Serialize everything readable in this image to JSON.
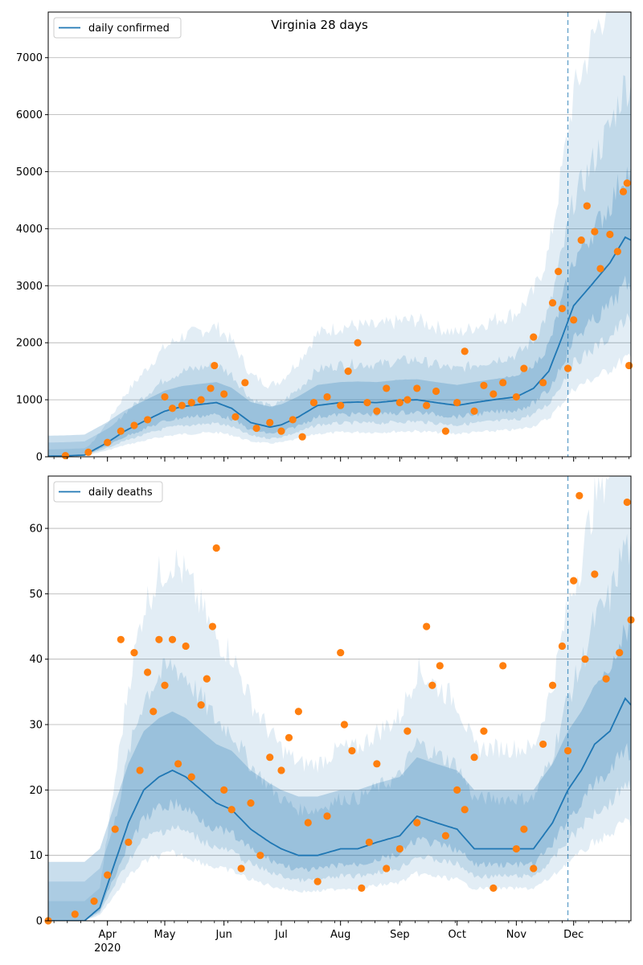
{
  "colors": {
    "line": "#1f77b4",
    "points": "#ff7f0e",
    "band": "#1f77b4",
    "grid": "#b0b0b0",
    "axis": "#000000"
  },
  "chart_data": [
    {
      "type": "line",
      "title": "Virginia 28 days",
      "legend": {
        "placement": "top-left",
        "entries": [
          "daily confirmed"
        ]
      },
      "grid": "y",
      "xlim": [
        "2020-03-01",
        "2020-12-31"
      ],
      "ylim": [
        0,
        7800
      ],
      "yticks": [
        0,
        1000,
        2000,
        3000,
        4000,
        5000,
        6000,
        7000
      ],
      "forecast_start": "2020-11-28",
      "series": [
        {
          "name": "daily confirmed",
          "kind": "model-median",
          "x": [
            "2020-03-01",
            "2020-03-10",
            "2020-03-20",
            "2020-04-01",
            "2020-04-10",
            "2020-04-20",
            "2020-05-01",
            "2020-05-10",
            "2020-05-20",
            "2020-05-28",
            "2020-06-05",
            "2020-06-15",
            "2020-06-25",
            "2020-07-01",
            "2020-07-10",
            "2020-07-20",
            "2020-08-01",
            "2020-08-10",
            "2020-08-20",
            "2020-09-01",
            "2020-09-10",
            "2020-09-20",
            "2020-10-01",
            "2020-10-10",
            "2020-10-20",
            "2020-11-01",
            "2020-11-10",
            "2020-11-18",
            "2020-11-25",
            "2020-12-01",
            "2020-12-10",
            "2020-12-20",
            "2020-12-28",
            "2020-12-31"
          ],
          "values": [
            10,
            15,
            30,
            250,
            450,
            620,
            800,
            880,
            920,
            950,
            850,
            600,
            520,
            560,
            700,
            900,
            950,
            960,
            950,
            990,
            1000,
            950,
            900,
            950,
            1000,
            1050,
            1200,
            1500,
            2100,
            2650,
            3000,
            3400,
            3850,
            3800
          ]
        },
        {
          "name": "daily confirmed (observed)",
          "kind": "scatter",
          "x": [
            "2020-03-10",
            "2020-03-22",
            "2020-04-01",
            "2020-04-08",
            "2020-04-15",
            "2020-04-22",
            "2020-05-01",
            "2020-05-05",
            "2020-05-10",
            "2020-05-15",
            "2020-05-20",
            "2020-05-25",
            "2020-05-27",
            "2020-06-01",
            "2020-06-07",
            "2020-06-12",
            "2020-06-18",
            "2020-06-25",
            "2020-07-01",
            "2020-07-07",
            "2020-07-12",
            "2020-07-18",
            "2020-07-25",
            "2020-08-01",
            "2020-08-05",
            "2020-08-10",
            "2020-08-15",
            "2020-08-20",
            "2020-08-25",
            "2020-09-01",
            "2020-09-05",
            "2020-09-10",
            "2020-09-15",
            "2020-09-20",
            "2020-09-25",
            "2020-10-01",
            "2020-10-05",
            "2020-10-10",
            "2020-10-15",
            "2020-10-20",
            "2020-10-25",
            "2020-11-01",
            "2020-11-05",
            "2020-11-10",
            "2020-11-15",
            "2020-11-20",
            "2020-11-23",
            "2020-11-25",
            "2020-11-28",
            "2020-12-01",
            "2020-12-05",
            "2020-12-08",
            "2020-12-12",
            "2020-12-15",
            "2020-12-20",
            "2020-12-24",
            "2020-12-27",
            "2020-12-29",
            "2020-12-30"
          ],
          "values": [
            20,
            80,
            250,
            450,
            550,
            650,
            1050,
            850,
            900,
            950,
            1000,
            1200,
            1600,
            1100,
            700,
            1300,
            500,
            600,
            450,
            650,
            350,
            950,
            1050,
            900,
            1500,
            2000,
            950,
            800,
            1200,
            950,
            1000,
            1200,
            900,
            1150,
            450,
            950,
            1850,
            800,
            1250,
            1100,
            1300,
            1050,
            1550,
            2100,
            1300,
            2700,
            3250,
            2600,
            1550,
            2400,
            3800,
            4400,
            3950,
            3300,
            3900,
            3600,
            4650,
            4800,
            1600
          ]
        }
      ]
    },
    {
      "type": "line",
      "legend": {
        "placement": "top-left",
        "entries": [
          "daily deaths"
        ]
      },
      "grid": "y",
      "xlim": [
        "2020-03-01",
        "2020-12-31"
      ],
      "ylim": [
        0,
        68
      ],
      "yticks": [
        0,
        10,
        20,
        30,
        40,
        50,
        60
      ],
      "xticks": [
        "Apr",
        "May",
        "Jun",
        "Jul",
        "Aug",
        "Sep",
        "Oct",
        "Nov",
        "Dec"
      ],
      "xtick_dates": [
        "2020-04-01",
        "2020-05-01",
        "2020-06-01",
        "2020-07-01",
        "2020-08-01",
        "2020-09-01",
        "2020-10-01",
        "2020-11-01",
        "2020-12-01"
      ],
      "year_label": "2020",
      "forecast_start": "2020-11-28",
      "series": [
        {
          "name": "daily deaths",
          "kind": "model-median",
          "x": [
            "2020-03-01",
            "2020-03-20",
            "2020-03-28",
            "2020-04-05",
            "2020-04-12",
            "2020-04-20",
            "2020-04-28",
            "2020-05-05",
            "2020-05-12",
            "2020-05-20",
            "2020-05-28",
            "2020-06-05",
            "2020-06-15",
            "2020-06-25",
            "2020-07-01",
            "2020-07-10",
            "2020-07-20",
            "2020-08-01",
            "2020-08-10",
            "2020-08-20",
            "2020-09-01",
            "2020-09-10",
            "2020-09-20",
            "2020-10-01",
            "2020-10-10",
            "2020-10-20",
            "2020-11-01",
            "2020-11-10",
            "2020-11-20",
            "2020-11-28",
            "2020-12-05",
            "2020-12-12",
            "2020-12-20",
            "2020-12-28",
            "2020-12-31"
          ],
          "values": [
            0,
            0,
            2,
            9,
            15,
            20,
            22,
            23,
            22,
            20,
            18,
            17,
            14,
            12,
            11,
            10,
            10,
            11,
            11,
            12,
            13,
            16,
            15,
            14,
            11,
            11,
            11,
            11,
            15,
            20,
            23,
            27,
            29,
            34,
            33
          ]
        },
        {
          "name": "daily deaths (observed)",
          "kind": "scatter",
          "x": [
            "2020-03-01",
            "2020-03-15",
            "2020-03-25",
            "2020-04-01",
            "2020-04-05",
            "2020-04-08",
            "2020-04-12",
            "2020-04-15",
            "2020-04-18",
            "2020-04-22",
            "2020-04-25",
            "2020-04-28",
            "2020-05-01",
            "2020-05-05",
            "2020-05-08",
            "2020-05-12",
            "2020-05-15",
            "2020-05-20",
            "2020-05-23",
            "2020-05-26",
            "2020-05-28",
            "2020-06-01",
            "2020-06-05",
            "2020-06-10",
            "2020-06-15",
            "2020-06-20",
            "2020-06-25",
            "2020-07-01",
            "2020-07-05",
            "2020-07-10",
            "2020-07-15",
            "2020-07-20",
            "2020-07-25",
            "2020-08-01",
            "2020-08-03",
            "2020-08-07",
            "2020-08-12",
            "2020-08-16",
            "2020-08-20",
            "2020-08-25",
            "2020-09-01",
            "2020-09-05",
            "2020-09-10",
            "2020-09-15",
            "2020-09-18",
            "2020-09-22",
            "2020-09-25",
            "2020-10-01",
            "2020-10-05",
            "2020-10-10",
            "2020-10-15",
            "2020-10-20",
            "2020-10-25",
            "2020-11-01",
            "2020-11-05",
            "2020-11-10",
            "2020-11-15",
            "2020-11-20",
            "2020-11-25",
            "2020-11-28",
            "2020-12-01",
            "2020-12-04",
            "2020-12-07",
            "2020-12-12",
            "2020-12-18",
            "2020-12-25",
            "2020-12-29",
            "2020-12-31"
          ],
          "values": [
            0,
            1,
            3,
            7,
            14,
            43,
            12,
            41,
            23,
            38,
            32,
            43,
            36,
            43,
            24,
            42,
            22,
            33,
            37,
            45,
            57,
            20,
            17,
            8,
            18,
            10,
            25,
            23,
            28,
            32,
            15,
            6,
            16,
            41,
            30,
            26,
            5,
            12,
            24,
            8,
            11,
            29,
            15,
            45,
            36,
            39,
            13,
            20,
            17,
            25,
            29,
            5,
            39,
            11,
            14,
            8,
            27,
            36,
            42,
            26,
            52,
            65,
            40,
            53,
            37,
            41,
            64,
            46
          ]
        }
      ]
    }
  ]
}
